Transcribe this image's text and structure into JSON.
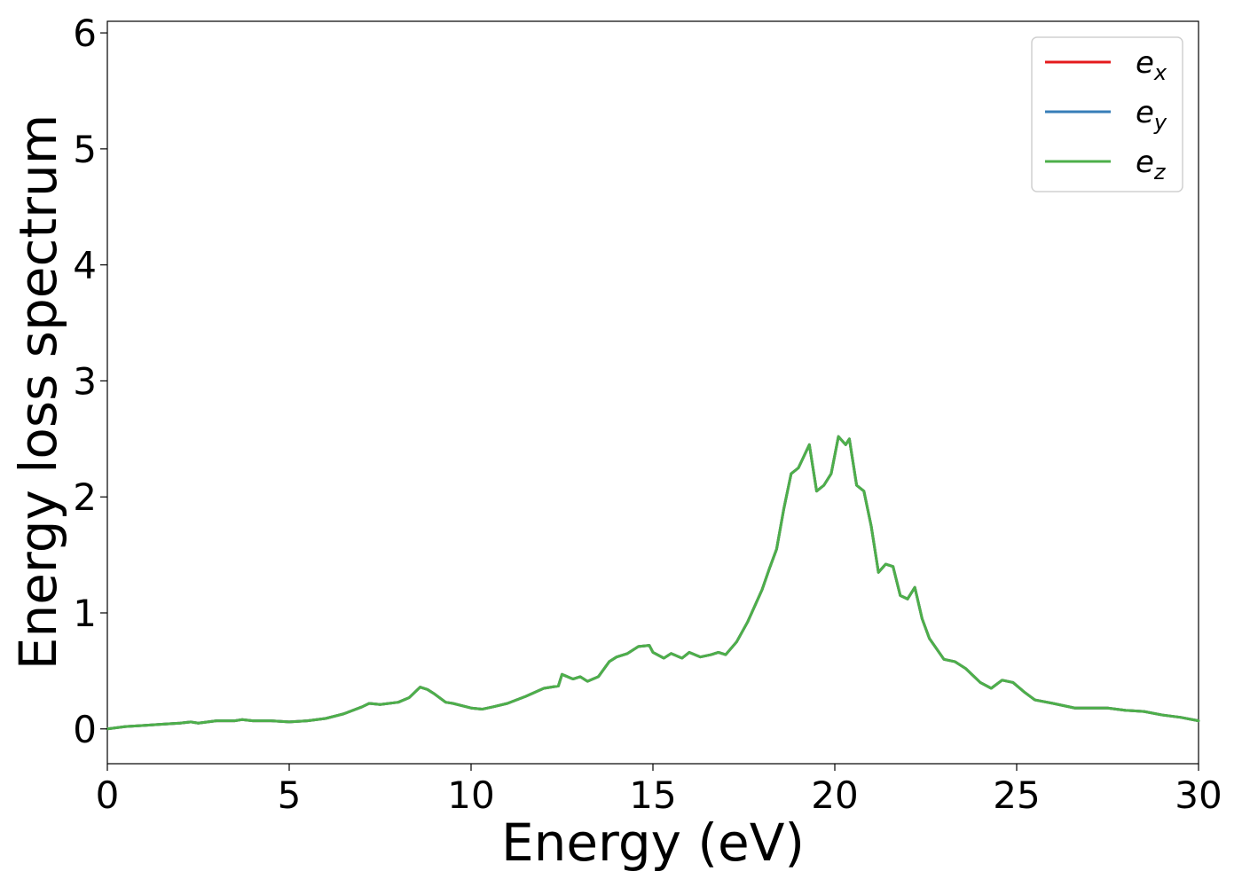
{
  "chart_data": {
    "type": "line",
    "title": "",
    "xlabel": "Energy (eV)",
    "ylabel": "Energy loss spectrum",
    "xlim": [
      0,
      30
    ],
    "ylim": [
      -0.3,
      6.1
    ],
    "xticks": [
      "0",
      "5",
      "10",
      "15",
      "20",
      "25",
      "30"
    ],
    "yticks": [
      "0",
      "1",
      "2",
      "3",
      "4",
      "5",
      "6"
    ],
    "xtick_values": [
      0,
      5,
      10,
      15,
      20,
      25,
      30
    ],
    "ytick_values": [
      0,
      1,
      2,
      3,
      4,
      5,
      6
    ],
    "grid": false,
    "legend_position": "top-right",
    "series": [
      {
        "name": "e",
        "subscript": "x",
        "color": "#e41a1c"
      },
      {
        "name": "e",
        "subscript": "y",
        "color": "#377eb8"
      },
      {
        "name": "e",
        "subscript": "z",
        "color": "#4daf4a"
      }
    ],
    "x": [
      0,
      0.5,
      1,
      1.5,
      2,
      2.3,
      2.5,
      3,
      3.5,
      3.7,
      4,
      4.5,
      5,
      5.5,
      6,
      6.5,
      7,
      7.2,
      7.5,
      8,
      8.3,
      8.6,
      8.8,
      9,
      9.3,
      9.5,
      10,
      10.3,
      10.6,
      11,
      11.5,
      12,
      12.4,
      12.5,
      12.8,
      13,
      13.2,
      13.5,
      13.8,
      14,
      14.3,
      14.6,
      14.9,
      15,
      15.3,
      15.5,
      15.8,
      16,
      16.3,
      16.6,
      16.8,
      17,
      17.3,
      17.6,
      18,
      18.2,
      18.4,
      18.6,
      18.8,
      19,
      19.3,
      19.5,
      19.7,
      19.9,
      20.1,
      20.3,
      20.4,
      20.6,
      20.8,
      21,
      21.2,
      21.4,
      21.6,
      21.8,
      22,
      22.2,
      22.4,
      22.6,
      23,
      23.3,
      23.6,
      24,
      24.3,
      24.6,
      24.9,
      25.2,
      25.5,
      26,
      26.3,
      26.6,
      27,
      27.5,
      28,
      28.5,
      29,
      29.5,
      30
    ],
    "y": [
      0.0,
      0.02,
      0.03,
      0.04,
      0.05,
      0.06,
      0.05,
      0.07,
      0.07,
      0.08,
      0.07,
      0.07,
      0.06,
      0.07,
      0.09,
      0.13,
      0.19,
      0.22,
      0.21,
      0.23,
      0.27,
      0.36,
      0.34,
      0.3,
      0.23,
      0.22,
      0.18,
      0.17,
      0.19,
      0.22,
      0.28,
      0.35,
      0.37,
      0.47,
      0.43,
      0.45,
      0.41,
      0.45,
      0.58,
      0.62,
      0.65,
      0.71,
      0.72,
      0.66,
      0.61,
      0.65,
      0.61,
      0.66,
      0.62,
      0.64,
      0.66,
      0.64,
      0.75,
      0.92,
      1.2,
      1.38,
      1.55,
      1.9,
      2.2,
      2.25,
      2.45,
      2.05,
      2.1,
      2.2,
      2.52,
      2.45,
      2.5,
      2.1,
      2.05,
      1.75,
      1.35,
      1.42,
      1.4,
      1.15,
      1.12,
      1.22,
      0.95,
      0.78,
      0.6,
      0.58,
      0.52,
      0.4,
      0.35,
      0.42,
      0.4,
      0.32,
      0.25,
      0.22,
      0.2,
      0.18,
      0.18,
      0.18,
      0.16,
      0.15,
      0.12,
      0.1,
      0.07
    ]
  }
}
